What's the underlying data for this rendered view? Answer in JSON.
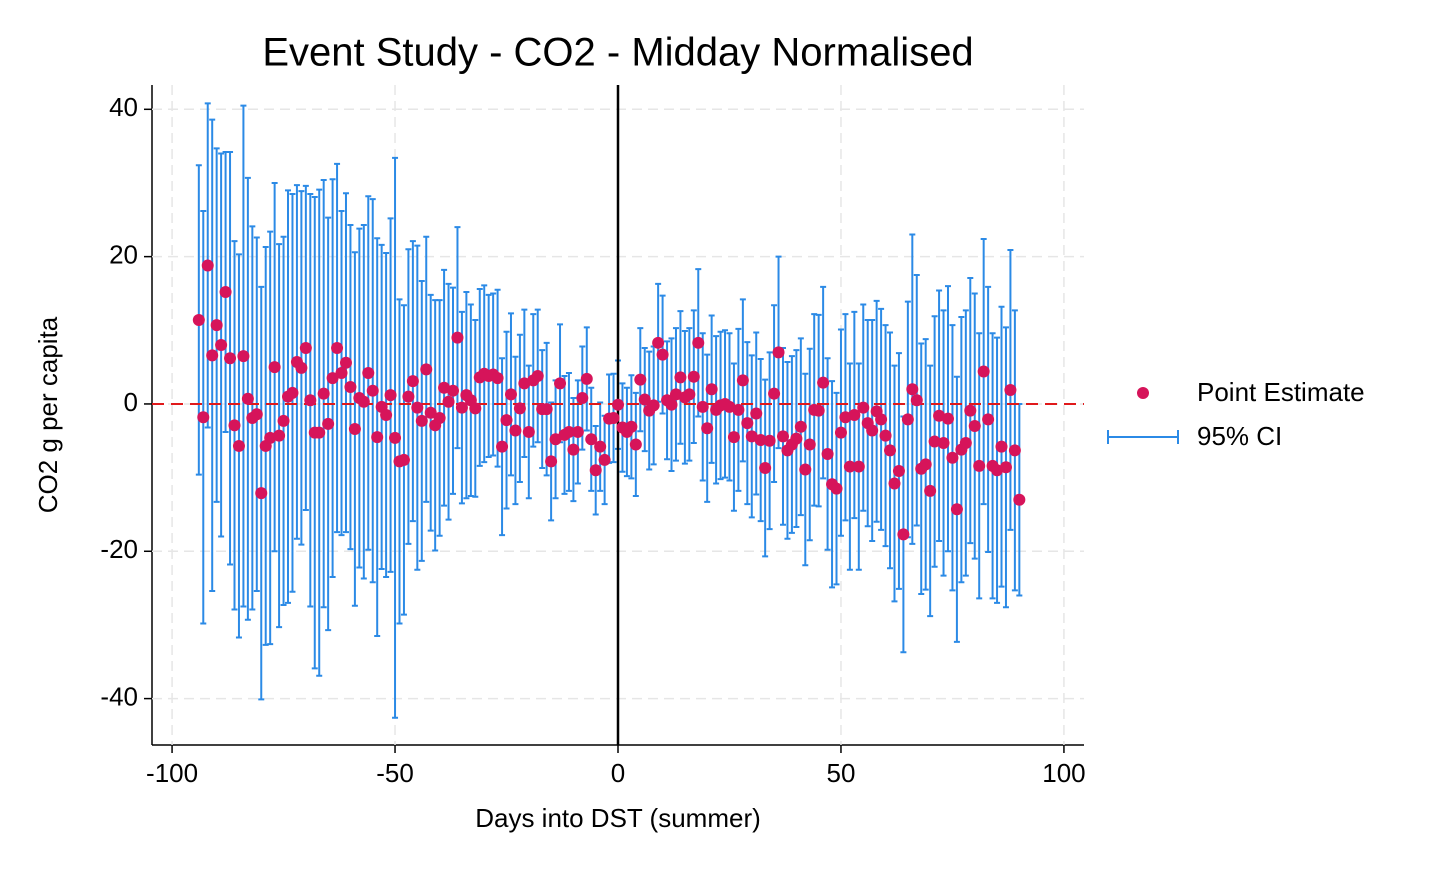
{
  "chart_data": {
    "type": "errorbar-scatter",
    "title": "Event Study - CO2 - Midday Normalised",
    "xlabel": "Days into DST (summer)",
    "ylabel": "CO2 g per capita",
    "xlim": [
      -104.5,
      104.5
    ],
    "ylim": [
      -46.3,
      43.3
    ],
    "xticks": [
      -100,
      -50,
      0,
      50,
      100
    ],
    "yticks": [
      -40,
      -20,
      0,
      20,
      40
    ],
    "grid": true,
    "vline": 0,
    "hline": 0,
    "vline_color": "#000000",
    "hline_color": "#e0191b",
    "x": [
      -94,
      -93,
      -92,
      -91,
      -90,
      -89,
      -88,
      -87,
      -86,
      -85,
      -84,
      -83,
      -82,
      -81,
      -80,
      -79,
      -78,
      -77,
      -76,
      -75,
      -74,
      -73,
      -72,
      -71,
      -70,
      -69,
      -68,
      -67,
      -66,
      -65,
      -64,
      -63,
      -62,
      -61,
      -60,
      -59,
      -58,
      -57,
      -56,
      -55,
      -54,
      -53,
      -52,
      -51,
      -50,
      -49,
      -48,
      -47,
      -46,
      -45,
      -44,
      -43,
      -42,
      -41,
      -40,
      -39,
      -38,
      -37,
      -36,
      -35,
      -34,
      -33,
      -32,
      -31,
      -30,
      -29,
      -28,
      -27,
      -26,
      -25,
      -24,
      -23,
      -22,
      -21,
      -20,
      -19,
      -18,
      -17,
      -16,
      -15,
      -14,
      -13,
      -12,
      -11,
      -10,
      -9,
      -8,
      -7,
      -6,
      -5,
      -4,
      -3,
      -2,
      -1,
      0,
      1,
      2,
      3,
      4,
      5,
      6,
      7,
      8,
      9,
      10,
      11,
      12,
      13,
      14,
      15,
      16,
      17,
      18,
      19,
      20,
      21,
      22,
      23,
      24,
      25,
      26,
      27,
      28,
      29,
      30,
      31,
      32,
      33,
      34,
      35,
      36,
      37,
      38,
      39,
      40,
      41,
      42,
      43,
      44,
      45,
      46,
      47,
      48,
      49,
      50,
      51,
      52,
      53,
      54,
      55,
      56,
      57,
      58,
      59,
      60,
      61,
      62,
      63,
      64,
      65,
      66,
      67,
      68,
      69,
      70,
      71,
      72,
      73,
      74,
      75,
      76,
      77,
      78,
      79,
      80,
      81,
      82,
      83,
      84,
      85,
      86,
      87,
      88,
      89,
      90
    ],
    "series": [
      {
        "name": "Point Estimate",
        "color": "#d6145a",
        "values": [
          11.4,
          -1.8,
          18.8,
          6.6,
          10.7,
          8.0,
          15.2,
          6.2,
          -2.9,
          -5.7,
          6.5,
          0.7,
          -1.9,
          -1.4,
          -12.1,
          -5.7,
          -4.6,
          5.0,
          -4.3,
          -2.3,
          1.0,
          1.5,
          5.7,
          4.9,
          7.6,
          0.5,
          -3.9,
          -3.9,
          1.4,
          -2.7,
          3.5,
          7.6,
          4.2,
          5.6,
          2.3,
          -3.4,
          0.8,
          0.3,
          4.2,
          1.8,
          -4.5,
          -0.4,
          -1.5,
          1.2,
          -4.6,
          -7.8,
          -7.6,
          1.0,
          3.1,
          -0.5,
          -2.3,
          4.7,
          -1.2,
          -2.9,
          -1.9,
          2.2,
          0.3,
          1.8,
          9.0,
          -0.5,
          1.2,
          0.5,
          -0.6,
          3.6,
          4.1,
          3.8,
          4.0,
          3.5,
          -5.8,
          -2.2,
          1.3,
          -3.6,
          -0.6,
          2.8,
          -3.8,
          3.2,
          3.8,
          -0.7,
          -0.7,
          -7.8,
          -4.8,
          2.8,
          -4.2,
          -3.8,
          -6.2,
          -3.8,
          0.8,
          3.4,
          -4.8,
          -9.0,
          -5.8,
          -7.6,
          -2.0,
          -1.9,
          -0.1,
          -3.2,
          -3.8,
          -3.1,
          -5.5,
          3.3,
          0.6,
          -0.9,
          -0.2,
          8.3,
          6.7,
          0.5,
          -0.1,
          1.3,
          3.6,
          0.9,
          1.3,
          3.7,
          8.3,
          -0.4,
          -3.3,
          2.0,
          -0.8,
          -0.2,
          0.0,
          -0.4,
          -4.5,
          -0.8,
          3.2,
          -2.6,
          -4.4,
          -1.3,
          -4.9,
          -8.7,
          -5.0,
          1.4,
          7.0,
          -4.4,
          -6.3,
          -5.5,
          -4.7,
          -3.1,
          -8.9,
          -5.5,
          -0.8,
          -0.9,
          2.9,
          -6.8,
          -10.9,
          -11.5,
          -3.9,
          -1.8,
          -8.5,
          -1.5,
          -8.5,
          -0.5,
          -2.6,
          -3.6,
          -1.0,
          -2.1,
          -4.3,
          -6.3,
          -10.8,
          -9.1,
          -17.7,
          -2.1,
          2.0,
          0.5,
          -8.8,
          -8.2,
          -11.8,
          -5.1,
          -1.6,
          -5.3,
          -2.0,
          -7.3,
          -14.3,
          -6.2,
          -5.3,
          -0.9,
          -3.0,
          -8.4,
          4.4,
          -2.1,
          -8.4,
          -9.0,
          -5.8,
          -8.6,
          1.9,
          -6.3,
          -13.0
        ]
      },
      {
        "name": "95% CI",
        "color": "#2b8ae6",
        "errors": [
          21,
          28,
          22,
          32,
          24,
          26,
          19,
          28,
          25,
          26,
          34,
          30,
          26,
          24,
          28,
          27,
          28,
          25,
          26,
          25,
          28,
          27,
          24,
          24,
          22,
          28,
          32,
          33,
          29,
          28,
          27,
          25,
          22,
          23,
          22,
          24,
          23,
          24,
          24,
          26,
          27,
          22,
          22,
          24,
          38,
          22,
          21,
          20,
          19,
          22,
          19,
          18,
          16,
          17,
          16,
          16,
          16,
          14,
          15,
          13,
          14,
          13,
          12,
          12,
          12,
          11,
          11,
          12,
          12,
          12,
          11,
          10,
          10,
          10,
          9,
          9,
          9,
          8,
          9,
          8,
          8,
          8,
          8,
          8,
          7,
          7,
          7,
          7,
          7,
          6,
          6,
          6,
          6,
          6,
          6,
          6,
          6,
          7,
          7,
          7,
          7,
          8,
          8,
          8,
          8,
          8,
          9,
          9,
          9,
          9,
          9,
          9,
          10,
          10,
          10,
          10,
          10,
          10,
          10,
          10,
          10,
          11,
          11,
          11,
          11,
          11,
          11,
          12,
          12,
          12,
          13,
          12,
          12,
          12,
          12,
          12,
          13,
          13,
          13,
          13,
          13,
          13,
          14,
          13,
          14,
          14,
          14,
          14,
          14,
          14,
          14,
          15,
          15,
          15,
          15,
          16,
          16,
          16,
          16,
          16,
          21,
          17,
          17,
          17,
          17,
          17,
          17,
          18,
          18,
          18,
          18,
          18,
          18,
          18,
          18,
          18,
          18,
          18,
          18,
          18,
          19,
          19,
          19,
          19,
          13
        ]
      }
    ]
  }
}
